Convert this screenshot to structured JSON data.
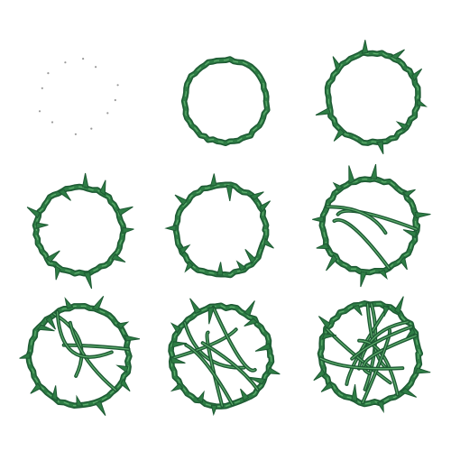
{
  "sprite_sheet": {
    "subject": "thorny-vine-ring-growth",
    "grid": {
      "rows": 3,
      "cols": 3
    },
    "colors": {
      "background": "#ffffff",
      "vine_dark": "#1d5a33",
      "vine_mid": "#2e7d45",
      "vine_light": "#5fae6e",
      "seed_dot": "#9a9a9a"
    },
    "frames": [
      {
        "stage": 1,
        "icon": "seed-dots-ring-icon",
        "thorns": 0,
        "inner_vines": 0
      },
      {
        "stage": 2,
        "icon": "vine-ring-icon",
        "thorns": 0,
        "inner_vines": 0
      },
      {
        "stage": 3,
        "icon": "thorny-vine-ring-icon",
        "thorns": 9,
        "inner_vines": 0
      },
      {
        "stage": 4,
        "icon": "thorny-vine-ring-icon",
        "thorns": 11,
        "inner_vines": 0
      },
      {
        "stage": 5,
        "icon": "thorny-vine-ring-icon",
        "thorns": 12,
        "inner_vines": 0
      },
      {
        "stage": 6,
        "icon": "thorny-vine-ring-icon",
        "thorns": 12,
        "inner_vines": 3
      },
      {
        "stage": 7,
        "icon": "thorny-vine-ring-icon",
        "thorns": 13,
        "inner_vines": 4
      },
      {
        "stage": 8,
        "icon": "thorny-vine-ring-icon",
        "thorns": 14,
        "inner_vines": 6
      },
      {
        "stage": 9,
        "icon": "tangled-vine-ring-icon",
        "thorns": 12,
        "inner_vines": 10
      }
    ]
  }
}
